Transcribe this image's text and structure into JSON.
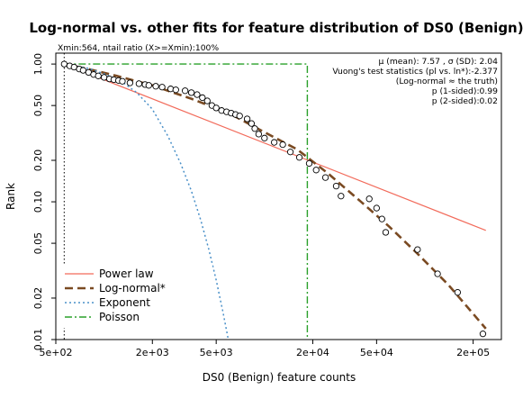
{
  "chart_data": {
    "type": "scatter",
    "title": "Log-normal vs. other fits for feature distribution of DS0 (Benign)",
    "xlabel": "DS0 (Benign) feature counts",
    "ylabel": "Rank",
    "xscale": "log",
    "yscale": "log",
    "xlim": [
      500,
      300000
    ],
    "ylim": [
      0.01,
      1.2
    ],
    "x_ticks": [
      {
        "value": 500,
        "label": "5e+02"
      },
      {
        "value": 2000,
        "label": "2e+03"
      },
      {
        "value": 5000,
        "label": "5e+03"
      },
      {
        "value": 20000,
        "label": "2e+04"
      },
      {
        "value": 50000,
        "label": "5e+04"
      },
      {
        "value": 200000,
        "label": "2e+05"
      }
    ],
    "y_ticks": [
      {
        "value": 0.01,
        "label": "0.01"
      },
      {
        "value": 0.02,
        "label": "0.02"
      },
      {
        "value": 0.05,
        "label": "0.05"
      },
      {
        "value": 0.1,
        "label": "0.10"
      },
      {
        "value": 0.2,
        "label": "0.20"
      },
      {
        "value": 0.5,
        "label": "0.50"
      },
      {
        "value": 1.0,
        "label": "1.00"
      }
    ],
    "xmin_note": "Xmin:564, ntail ratio (X>=Xmin):100%",
    "xmin_value": 564,
    "stats": [
      "μ (mean): 7.57 , σ (SD): 2.04",
      "Vuong's test statistics (pl vs. ln*):-2.377",
      "(Log-normal ≈ the truth)",
      "p (1-sided):0.99",
      "p (2-sided):0.02"
    ],
    "grid": false,
    "legend_position": "bottom-left",
    "legend": [
      {
        "label": "Power law",
        "color": "#f26b5b",
        "style": "solid"
      },
      {
        "label": "Log-normal*",
        "color": "#7a4a22",
        "style": "dashed"
      },
      {
        "label": "Exponent",
        "color": "#4a90c8",
        "style": "dotted"
      },
      {
        "label": "Poisson",
        "color": "#2aa02a",
        "style": "dashdot"
      }
    ],
    "points": [
      [
        564,
        1.0
      ],
      [
        610,
        0.97
      ],
      [
        650,
        0.95
      ],
      [
        700,
        0.92
      ],
      [
        740,
        0.9
      ],
      [
        800,
        0.87
      ],
      [
        860,
        0.84
      ],
      [
        920,
        0.82
      ],
      [
        1000,
        0.8
      ],
      [
        1080,
        0.78
      ],
      [
        1150,
        0.77
      ],
      [
        1230,
        0.76
      ],
      [
        1300,
        0.75
      ],
      [
        1450,
        0.73
      ],
      [
        1650,
        0.72
      ],
      [
        1800,
        0.71
      ],
      [
        1900,
        0.7
      ],
      [
        2100,
        0.69
      ],
      [
        2300,
        0.68
      ],
      [
        2600,
        0.66
      ],
      [
        2800,
        0.65
      ],
      [
        3200,
        0.64
      ],
      [
        3500,
        0.62
      ],
      [
        3800,
        0.6
      ],
      [
        4100,
        0.57
      ],
      [
        4400,
        0.54
      ],
      [
        4700,
        0.5
      ],
      [
        5000,
        0.48
      ],
      [
        5400,
        0.46
      ],
      [
        5800,
        0.45
      ],
      [
        6200,
        0.44
      ],
      [
        6600,
        0.43
      ],
      [
        7000,
        0.42
      ],
      [
        7800,
        0.4
      ],
      [
        8300,
        0.37
      ],
      [
        8700,
        0.34
      ],
      [
        9200,
        0.31
      ],
      [
        10000,
        0.29
      ],
      [
        11500,
        0.27
      ],
      [
        13000,
        0.26
      ],
      [
        14500,
        0.23
      ],
      [
        16500,
        0.21
      ],
      [
        19000,
        0.19
      ],
      [
        21000,
        0.17
      ],
      [
        24000,
        0.15
      ],
      [
        28000,
        0.13
      ],
      [
        30000,
        0.11
      ],
      [
        45000,
        0.105
      ],
      [
        50000,
        0.09
      ],
      [
        54000,
        0.075
      ],
      [
        57000,
        0.06
      ],
      [
        90000,
        0.045
      ],
      [
        120000,
        0.03
      ],
      [
        160000,
        0.022
      ],
      [
        230000,
        0.011
      ]
    ],
    "power_law_fit": [
      [
        564,
        1.0
      ],
      [
        240000,
        0.062
      ]
    ],
    "lognormal_fit": [
      [
        564,
        1.0
      ],
      [
        800,
        0.92
      ],
      [
        1200,
        0.82
      ],
      [
        2000,
        0.7
      ],
      [
        3500,
        0.56
      ],
      [
        6000,
        0.44
      ],
      [
        10000,
        0.32
      ],
      [
        16000,
        0.24
      ],
      [
        25000,
        0.16
      ],
      [
        40000,
        0.1
      ],
      [
        60000,
        0.066
      ],
      [
        90000,
        0.042
      ],
      [
        140000,
        0.025
      ],
      [
        240000,
        0.012
      ]
    ],
    "exponential_fit": [
      [
        564,
        1.0
      ],
      [
        800,
        0.93
      ],
      [
        1000,
        0.85
      ],
      [
        1300,
        0.74
      ],
      [
        1600,
        0.62
      ],
      [
        2000,
        0.47
      ],
      [
        2500,
        0.3
      ],
      [
        3000,
        0.19
      ],
      [
        3500,
        0.12
      ],
      [
        4000,
        0.074
      ],
      [
        4500,
        0.045
      ],
      [
        5000,
        0.027
      ],
      [
        5500,
        0.016
      ],
      [
        6000,
        0.0095
      ]
    ],
    "poisson_fit": [
      [
        564,
        1.0
      ],
      [
        18500,
        1.0
      ],
      [
        18500,
        0.0095
      ]
    ]
  }
}
